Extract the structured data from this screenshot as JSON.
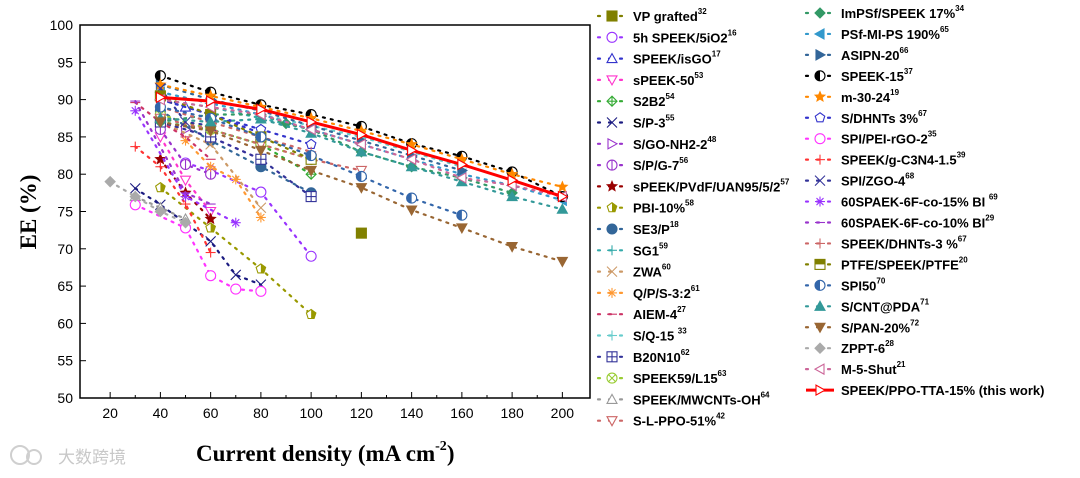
{
  "watermark": "大数跨境",
  "chart_data": {
    "type": "scatter",
    "title": "",
    "xlabel": "Current density (mA cm",
    "xlabel_sup": "-2",
    "xlabel_end": ")",
    "ylabel": "EE (%)",
    "xlim": [
      8,
      211
    ],
    "ylim": [
      50,
      100
    ],
    "xticks": [
      20,
      40,
      60,
      80,
      100,
      120,
      140,
      160,
      180,
      200
    ],
    "yticks": [
      50,
      55,
      60,
      65,
      70,
      75,
      80,
      85,
      90,
      95,
      100
    ],
    "grid": false,
    "legend_position": "right",
    "series": [
      {
        "name": "VP grafted",
        "ref": "32",
        "color": "#808000",
        "marker": "square",
        "fill": true,
        "points": [
          [
            120,
            72.1
          ]
        ]
      },
      {
        "name": "5h SPEEK/5iO2",
        "ref": "16",
        "color": "#9933ff",
        "marker": "circle",
        "fill": false,
        "points": [
          [
            50,
            81.5
          ],
          [
            60,
            80.5
          ],
          [
            80,
            77.6
          ],
          [
            100,
            69
          ]
        ]
      },
      {
        "name": "SPEEK/isGO",
        "ref": "17",
        "color": "#3333cc",
        "marker": "triangle",
        "fill": false,
        "points": [
          [
            40,
            90.5
          ],
          [
            50,
            89
          ],
          [
            60,
            88
          ],
          [
            80,
            85.5
          ]
        ]
      },
      {
        "name": "sPEEK-50",
        "ref": "53",
        "color": "#ff33cc",
        "marker": "tridown",
        "fill": false,
        "points": [
          [
            40,
            85
          ],
          [
            50,
            79.2
          ],
          [
            60,
            75
          ]
        ]
      },
      {
        "name": "S2B2",
        "ref": "54",
        "color": "#33aa33",
        "marker": "diamondplus",
        "fill": false,
        "points": [
          [
            40,
            87
          ],
          [
            60,
            86
          ],
          [
            80,
            84
          ],
          [
            100,
            80
          ]
        ]
      },
      {
        "name": "S/P-3",
        "ref": "55",
        "color": "#1a1a80",
        "marker": "x",
        "fill": false,
        "points": [
          [
            30,
            78.1
          ],
          [
            40,
            75.9
          ],
          [
            60,
            71
          ],
          [
            70,
            66.5
          ],
          [
            80,
            65.2
          ]
        ]
      },
      {
        "name": "S/GO-NH2-2",
        "ref": "48",
        "color": "#9933cc",
        "marker": "triright",
        "fill": false,
        "points": [
          [
            40,
            87
          ],
          [
            50,
            86
          ],
          [
            60,
            85
          ],
          [
            80,
            82
          ]
        ]
      },
      {
        "name": "S/P/G-7",
        "ref": "56",
        "color": "#9933cc",
        "marker": "circleline",
        "fill": false,
        "points": [
          [
            40,
            86
          ],
          [
            50,
            81.3
          ],
          [
            60,
            80
          ]
        ]
      },
      {
        "name": "sPEEK/PVdF/UAN95/5/2",
        "ref": "57",
        "color": "#990000",
        "marker": "star",
        "fill": true,
        "points": [
          [
            40,
            82
          ],
          [
            50,
            77.5
          ],
          [
            60,
            74
          ]
        ]
      },
      {
        "name": "PBI-10%",
        "ref": "58",
        "color": "#999900",
        "marker": "halfpent",
        "fill": true,
        "points": [
          [
            40,
            78.2
          ],
          [
            60,
            72.8
          ],
          [
            80,
            67.3
          ],
          [
            100,
            61.2
          ]
        ]
      },
      {
        "name": "SE3/P",
        "ref": "18",
        "color": "#336699",
        "marker": "circle",
        "fill": true,
        "points": [
          [
            40,
            88.5
          ],
          [
            60,
            84.5
          ],
          [
            80,
            81
          ],
          [
            100,
            77.5
          ]
        ]
      },
      {
        "name": "SG1",
        "ref": "59",
        "color": "#33aaaa",
        "marker": "plus",
        "fill": false,
        "points": [
          [
            40,
            90
          ],
          [
            60,
            89
          ],
          [
            80,
            87.5
          ],
          [
            100,
            86
          ],
          [
            120,
            84
          ]
        ]
      },
      {
        "name": "ZWA",
        "ref": "60",
        "color": "#cc9966",
        "marker": "x",
        "fill": false,
        "points": [
          [
            40,
            87
          ],
          [
            60,
            84
          ],
          [
            80,
            75.5
          ]
        ]
      },
      {
        "name": "Q/P/S-3:2",
        "ref": "61",
        "color": "#ff9933",
        "marker": "asterisk",
        "fill": false,
        "points": [
          [
            50,
            84.5
          ],
          [
            60,
            81
          ],
          [
            70,
            79.3
          ],
          [
            80,
            74.2
          ]
        ]
      },
      {
        "name": "AIEM-4",
        "ref": "27",
        "color": "#cc3366",
        "marker": "dash",
        "fill": false,
        "points": [
          [
            30,
            89.6
          ],
          [
            40,
            87
          ],
          [
            50,
            85
          ],
          [
            60,
            82
          ]
        ]
      },
      {
        "name": "S/Q-15 ",
        "ref": "33",
        "color": "#66cccc",
        "marker": "plus",
        "fill": false,
        "points": [
          [
            40,
            91
          ],
          [
            60,
            89.5
          ],
          [
            80,
            88
          ],
          [
            100,
            86.5
          ],
          [
            120,
            85
          ],
          [
            140,
            83
          ],
          [
            160,
            81
          ]
        ]
      },
      {
        "name": "B20N10",
        "ref": "62",
        "color": "#333399",
        "marker": "squareplus",
        "fill": false,
        "points": [
          [
            40,
            87
          ],
          [
            60,
            85
          ],
          [
            80,
            82
          ],
          [
            100,
            77
          ]
        ]
      },
      {
        "name": "SPEEK59/L15",
        "ref": "63",
        "color": "#99cc33",
        "marker": "circlex",
        "fill": false,
        "points": [
          [
            40,
            88
          ],
          [
            60,
            86
          ],
          [
            80,
            84
          ],
          [
            100,
            82
          ]
        ]
      },
      {
        "name": "SPEEK/MWCNTs-OH",
        "ref": "64",
        "color": "#999999",
        "marker": "triangle",
        "fill": false,
        "points": [
          [
            30,
            77
          ],
          [
            40,
            75.5
          ],
          [
            50,
            74
          ]
        ]
      },
      {
        "name": "S-L-PPO-51%",
        "ref": "42",
        "color": "#cc6666",
        "marker": "tridown",
        "fill": false,
        "points": [
          [
            40,
            87.5
          ],
          [
            60,
            86
          ],
          [
            80,
            84
          ],
          [
            100,
            82
          ],
          [
            120,
            80.5
          ]
        ]
      },
      {
        "name": "ImPSf/SPEEK 17%",
        "ref": "34",
        "color": "#339966",
        "marker": "diamond",
        "fill": true,
        "points": [
          [
            40,
            87
          ],
          [
            60,
            88
          ],
          [
            80,
            88
          ],
          [
            90,
            86.8
          ],
          [
            100,
            86
          ],
          [
            120,
            83
          ],
          [
            140,
            81
          ],
          [
            160,
            79.5
          ],
          [
            180,
            77.5
          ]
        ]
      },
      {
        "name": "PSf-MI-PS 190%",
        "ref": "65",
        "color": "#3399cc",
        "marker": "trileft",
        "fill": true,
        "points": [
          [
            40,
            91
          ],
          [
            60,
            89.5
          ],
          [
            80,
            88
          ],
          [
            100,
            86
          ],
          [
            120,
            84
          ],
          [
            140,
            82
          ],
          [
            160,
            80
          ],
          [
            180,
            78.5
          ],
          [
            200,
            76.5
          ]
        ]
      },
      {
        "name": "ASIPN-20",
        "ref": "66",
        "color": "#336699",
        "marker": "triright",
        "fill": true,
        "points": [
          [
            40,
            92
          ],
          [
            60,
            90
          ],
          [
            80,
            88.5
          ],
          [
            100,
            86.5
          ],
          [
            120,
            84.5
          ],
          [
            140,
            82.5
          ],
          [
            160,
            80.5
          ]
        ]
      },
      {
        "name": "SPEEK-15",
        "ref": "37",
        "color": "#000000",
        "marker": "halfcircle",
        "fill": true,
        "points": [
          [
            40,
            93.2
          ],
          [
            60,
            91
          ],
          [
            80,
            89.3
          ],
          [
            100,
            88
          ],
          [
            120,
            86.4
          ],
          [
            140,
            84.1
          ],
          [
            160,
            82.4
          ],
          [
            180,
            80.3
          ],
          [
            200,
            77
          ]
        ]
      },
      {
        "name": "m-30-24",
        "ref": "19",
        "color": "#ff8800",
        "marker": "star",
        "fill": true,
        "points": [
          [
            40,
            92
          ],
          [
            60,
            90.5
          ],
          [
            80,
            89
          ],
          [
            100,
            87.5
          ],
          [
            120,
            85.8
          ],
          [
            140,
            84
          ],
          [
            160,
            82
          ],
          [
            180,
            80
          ],
          [
            200,
            78.3
          ]
        ]
      },
      {
        "name": "S/DHNTs 3%",
        "ref": "67",
        "color": "#3333cc",
        "marker": "pentagon",
        "fill": false,
        "points": [
          [
            40,
            90
          ],
          [
            60,
            88
          ],
          [
            80,
            86
          ],
          [
            100,
            84
          ]
        ]
      },
      {
        "name": "SPI/PEI-rGO-2",
        "ref": "35",
        "color": "#ff33ff",
        "marker": "circle",
        "fill": false,
        "points": [
          [
            30,
            75.9
          ],
          [
            50,
            72.8
          ],
          [
            60,
            66.4
          ],
          [
            70,
            64.6
          ],
          [
            80,
            64.3
          ]
        ]
      },
      {
        "name": "SPEEK/g-C3N4-1.5",
        "ref": "39",
        "color": "#ff3333",
        "marker": "plus",
        "fill": false,
        "points": [
          [
            30,
            83.7
          ],
          [
            40,
            81
          ],
          [
            50,
            76
          ],
          [
            60,
            69.5
          ]
        ]
      },
      {
        "name": "SPI/ZGO-4",
        "ref": "68",
        "color": "#333399",
        "marker": "x",
        "fill": false,
        "points": [
          [
            40,
            91.5
          ],
          [
            50,
            87
          ],
          [
            60,
            86.5
          ]
        ]
      },
      {
        "name": "60SPAEK-6F-co-15% BI ",
        "ref": "69",
        "color": "#9933ff",
        "marker": "asterisk",
        "fill": false,
        "points": [
          [
            30,
            88.5
          ],
          [
            50,
            77
          ],
          [
            70,
            73.5
          ]
        ]
      },
      {
        "name": "60SPAEK-6F-co-10% BI",
        "ref": "29",
        "color": "#9933cc",
        "marker": "dash",
        "fill": false,
        "points": [
          [
            30,
            89.8
          ],
          [
            50,
            77.5
          ],
          [
            60,
            76
          ]
        ]
      },
      {
        "name": "SPEEK/DHNTs-3 %",
        "ref": "67",
        "color": "#cc6666",
        "marker": "plus",
        "fill": false,
        "points": [
          [
            40,
            89
          ],
          [
            60,
            87
          ],
          [
            80,
            85
          ],
          [
            100,
            83
          ]
        ]
      },
      {
        "name": "PTFE/SPEEK/PTFE",
        "ref": "20",
        "color": "#808000",
        "marker": "halfsquare",
        "fill": true,
        "points": [
          [
            40,
            90.5
          ],
          [
            60,
            88
          ],
          [
            80,
            85
          ],
          [
            100,
            82
          ]
        ]
      },
      {
        "name": "SPI50",
        "ref": "70",
        "color": "#3366aa",
        "marker": "halfcircle",
        "fill": true,
        "points": [
          [
            40,
            89
          ],
          [
            60,
            87.5
          ],
          [
            80,
            85
          ],
          [
            100,
            82.5
          ],
          [
            120,
            79.7
          ],
          [
            140,
            76.8
          ],
          [
            160,
            74.5
          ]
        ]
      },
      {
        "name": "S/CNT@PDA",
        "ref": "71",
        "color": "#339999",
        "marker": "triangle",
        "fill": true,
        "points": [
          [
            40,
            87.5
          ],
          [
            60,
            87
          ],
          [
            80,
            87.4
          ],
          [
            100,
            85.5
          ],
          [
            120,
            83
          ],
          [
            140,
            81
          ],
          [
            160,
            79
          ],
          [
            180,
            77
          ],
          [
            200,
            75.3
          ]
        ]
      },
      {
        "name": "S/PAN-20%",
        "ref": "72",
        "color": "#996633",
        "marker": "tridown",
        "fill": true,
        "points": [
          [
            40,
            87
          ],
          [
            60,
            85.8
          ],
          [
            80,
            83.2
          ],
          [
            100,
            80.5
          ],
          [
            120,
            78.2
          ],
          [
            140,
            75.2
          ],
          [
            160,
            72.8
          ],
          [
            180,
            70.3
          ],
          [
            200,
            68.3
          ]
        ]
      },
      {
        "name": "ZPPT-6",
        "ref": "28",
        "color": "#aaaaaa",
        "marker": "diamond",
        "fill": true,
        "points": [
          [
            20,
            79
          ],
          [
            30,
            77
          ],
          [
            40,
            75
          ],
          [
            50,
            73.5
          ]
        ]
      },
      {
        "name": "M-5-Shut",
        "ref": "21",
        "color": "#cc6699",
        "marker": "trileft",
        "fill": false,
        "points": [
          [
            40,
            90
          ],
          [
            60,
            89
          ],
          [
            80,
            88
          ],
          [
            100,
            86
          ],
          [
            120,
            84
          ],
          [
            140,
            82
          ],
          [
            160,
            79.5
          ],
          [
            180,
            78.5
          ],
          [
            200,
            77
          ]
        ]
      },
      {
        "name": "SPEEK/PPO-TTA-15% (this work)",
        "ref": "",
        "color": "#ff0000",
        "marker": "triright",
        "fill": false,
        "solid": true,
        "points": [
          [
            40,
            90.3
          ],
          [
            60,
            89.8
          ],
          [
            80,
            88.7
          ],
          [
            100,
            87
          ],
          [
            120,
            85.3
          ],
          [
            140,
            83.2
          ],
          [
            160,
            81.3
          ],
          [
            180,
            79.2
          ],
          [
            200,
            77
          ]
        ]
      }
    ]
  }
}
